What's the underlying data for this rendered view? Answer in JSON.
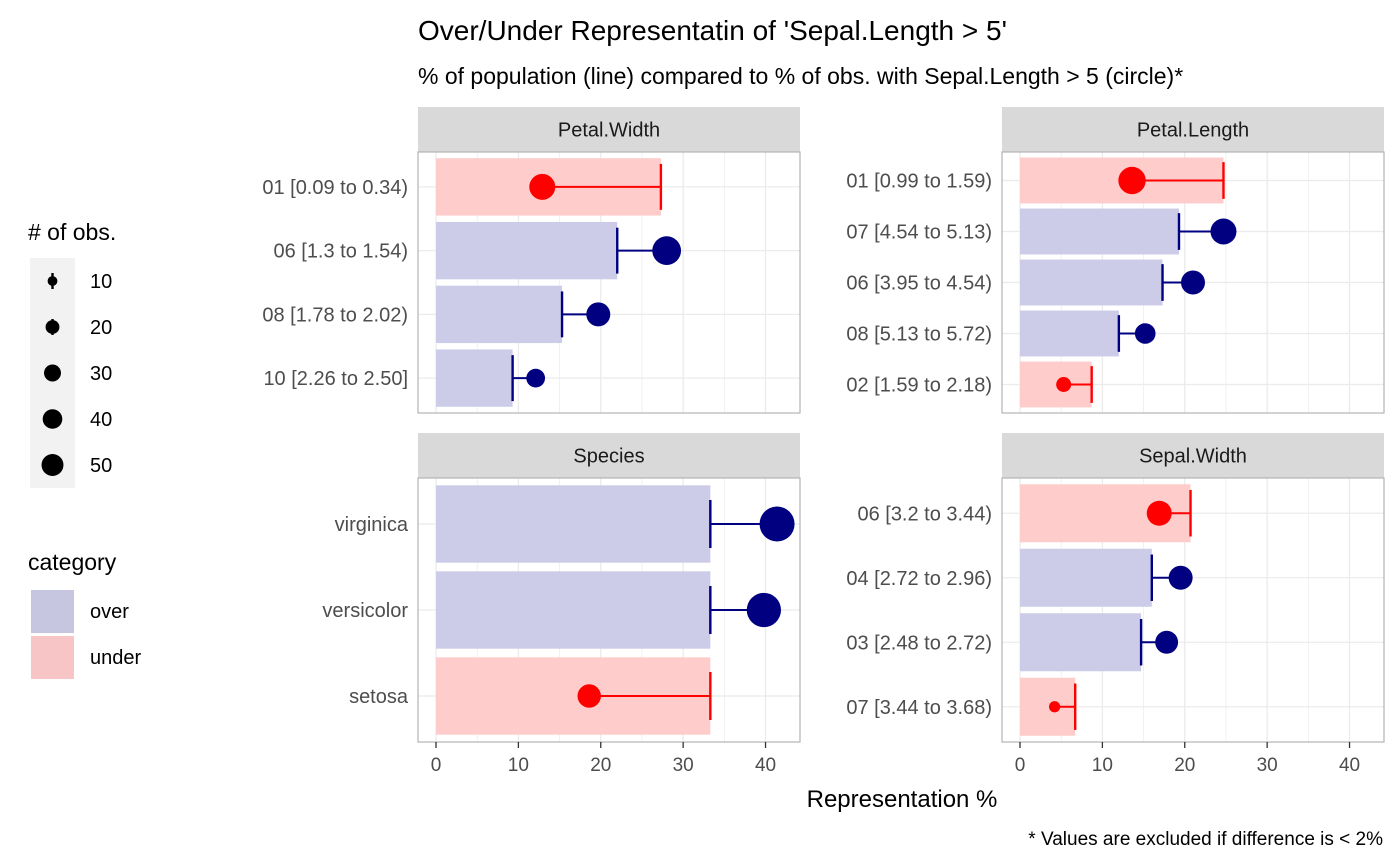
{
  "chart_data": {
    "type": "bar",
    "title": "Over/Under Representatin of 'Sepal.Length > 5'",
    "subtitle": "% of population (line) compared to % of obs. with Sepal.Length > 5 (circle)*",
    "xlabel": "Representation %",
    "caption": "* Values are excluded if difference is < 2%",
    "xlim": [
      0,
      42
    ],
    "xticks": [
      0,
      10,
      20,
      30,
      40
    ],
    "colors": {
      "over_fill": "#cccce8",
      "under_fill": "#ffcccc",
      "over_mark": "#000080",
      "under_mark": "#ff0000",
      "strip": "#d9d9d9",
      "panel_border": "#b3b3b3",
      "grid": "#ebebeb"
    },
    "legend": {
      "size_title": "# of obs.",
      "size_entries": [
        10,
        20,
        30,
        40,
        50
      ],
      "category_title": "category",
      "category_entries": [
        {
          "label": "over",
          "category": "over"
        },
        {
          "label": "under",
          "category": "under"
        }
      ]
    },
    "panels": [
      {
        "name": "Petal.Width",
        "categories": [
          "01 [0.09 to 0.34)",
          "06 [1.3 to 1.54)",
          "08 [1.78 to 2.02)",
          "10 [2.26 to 2.50]"
        ],
        "population_pct": [
          27.3,
          22.0,
          15.3,
          9.3
        ],
        "subset_pct": [
          12.9,
          28.0,
          19.7,
          12.1
        ],
        "n_obs": [
          27,
          33,
          23,
          14
        ],
        "category": [
          "under",
          "over",
          "over",
          "over"
        ]
      },
      {
        "name": "Petal.Length",
        "categories": [
          "01 [0.99 to 1.59)",
          "07 [4.54 to 5.13)",
          "06 [3.95 to 4.54)",
          "08 [5.13 to 5.72)",
          "02 [1.59 to 2.18)"
        ],
        "population_pct": [
          24.7,
          19.3,
          17.3,
          12.0,
          8.7
        ],
        "subset_pct": [
          13.6,
          24.7,
          21.0,
          15.2,
          5.3
        ],
        "n_obs": [
          30,
          27,
          23,
          17,
          9
        ],
        "category": [
          "under",
          "over",
          "over",
          "over",
          "under"
        ]
      },
      {
        "name": "Species",
        "categories": [
          "virginica",
          "versicolor",
          "setosa"
        ],
        "population_pct": [
          33.3,
          33.3,
          33.3
        ],
        "subset_pct": [
          41.4,
          39.8,
          18.6
        ],
        "n_obs": [
          49,
          47,
          22
        ],
        "category": [
          "over",
          "over",
          "under"
        ]
      },
      {
        "name": "Sepal.Width",
        "categories": [
          "06 [3.2 to 3.44)",
          "04 [2.72 to 2.96)",
          "03 [2.48 to 2.72)",
          "07 [3.44 to 3.68)"
        ],
        "population_pct": [
          20.7,
          16.0,
          14.7,
          6.7
        ],
        "subset_pct": [
          16.9,
          19.5,
          17.8,
          4.2
        ],
        "n_obs": [
          25,
          23,
          21,
          5
        ],
        "category": [
          "under",
          "over",
          "over",
          "under"
        ]
      }
    ]
  }
}
